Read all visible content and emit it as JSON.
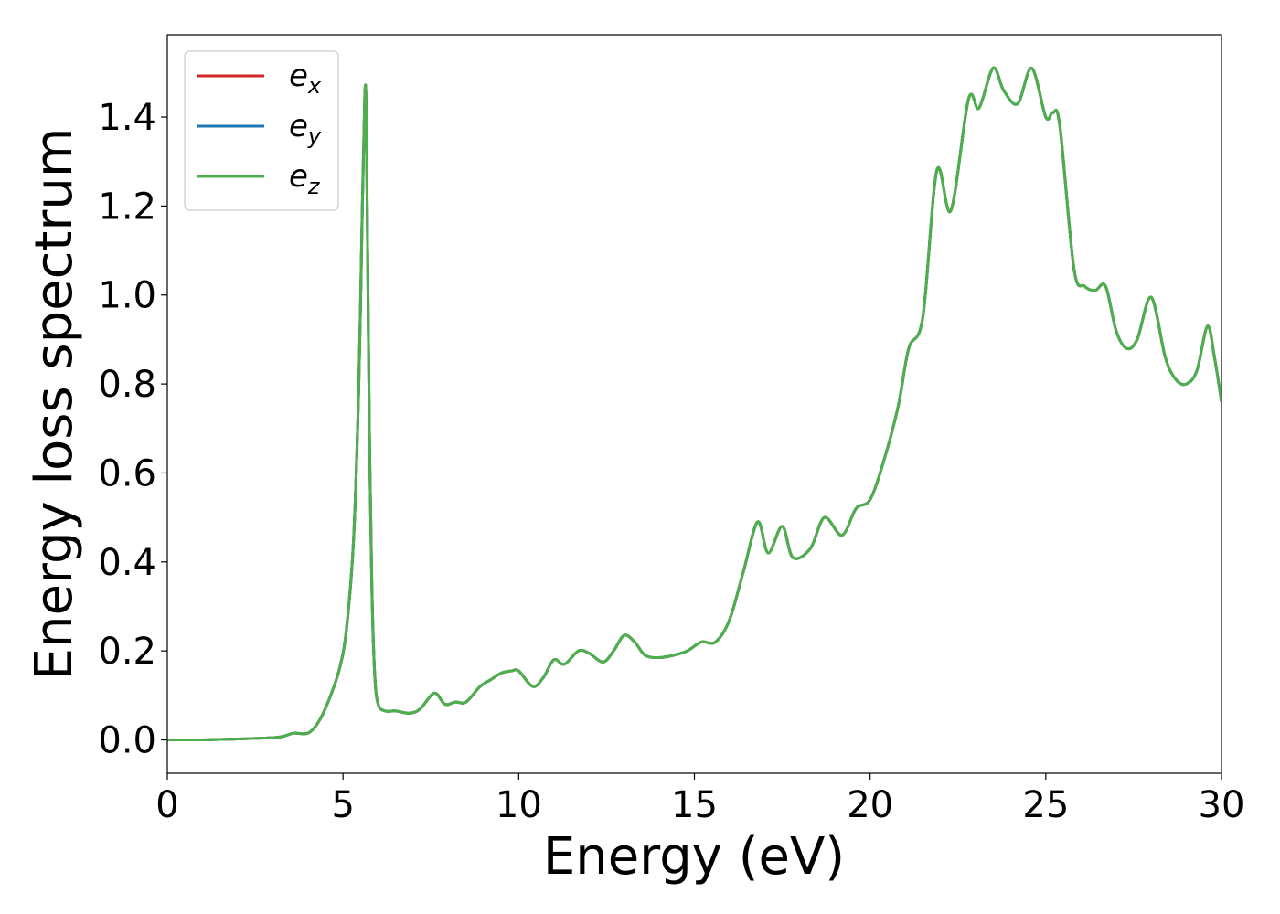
{
  "chart_data": {
    "type": "line",
    "title": "",
    "xlabel": "Energy (eV)",
    "ylabel": "Energy loss spectrum",
    "xlim": [
      0,
      30
    ],
    "ylim": [
      -0.075,
      1.585
    ],
    "xticks": [
      0,
      5,
      10,
      15,
      20,
      25,
      30
    ],
    "xtick_labels": [
      "0",
      "5",
      "10",
      "15",
      "20",
      "25",
      "30"
    ],
    "yticks": [
      0.0,
      0.2,
      0.4,
      0.6,
      0.8,
      1.0,
      1.2,
      1.4
    ],
    "ytick_labels": [
      "0.0",
      "0.2",
      "0.4",
      "0.6",
      "0.8",
      "1.0",
      "1.2",
      "1.4"
    ],
    "grid": false,
    "legend_position": "top-left",
    "series": [
      {
        "name": "e",
        "subscript": "x",
        "color": "#d62728"
      },
      {
        "name": "e",
        "subscript": "y",
        "color": "#1f77b4"
      },
      {
        "name": "e",
        "subscript": "z",
        "color": "#4daf4a"
      }
    ],
    "x": [
      0,
      1,
      2,
      3,
      3.3,
      3.6,
      4,
      4.3,
      4.6,
      4.9,
      5.1,
      5.3,
      5.45,
      5.55,
      5.62,
      5.66,
      5.7,
      5.75,
      5.82,
      5.9,
      6.0,
      6.2,
      6.5,
      6.9,
      7.2,
      7.6,
      7.9,
      8.2,
      8.5,
      8.9,
      9.2,
      9.5,
      9.8,
      10.0,
      10.4,
      10.7,
      11.0,
      11.3,
      11.7,
      12.0,
      12.4,
      12.7,
      13.0,
      13.3,
      13.6,
      14.0,
      14.4,
      14.8,
      15.2,
      15.6,
      16.0,
      16.4,
      16.8,
      17.1,
      17.5,
      17.8,
      18.3,
      18.7,
      19.2,
      19.6,
      20.0,
      20.4,
      20.8,
      21.1,
      21.5,
      21.9,
      22.3,
      22.8,
      23.1,
      23.5,
      23.8,
      24.2,
      24.6,
      25.0,
      25.2,
      25.4,
      25.8,
      26.1,
      26.4,
      26.7,
      27.0,
      27.3,
      27.6,
      28.0,
      28.4,
      28.7,
      29.0,
      29.3,
      29.6,
      29.8,
      30.0
    ],
    "values": [
      0.0,
      0.0,
      0.002,
      0.005,
      0.008,
      0.015,
      0.015,
      0.04,
      0.09,
      0.16,
      0.25,
      0.45,
      0.8,
      1.2,
      1.45,
      1.42,
      1.1,
      0.7,
      0.35,
      0.15,
      0.08,
      0.065,
      0.065,
      0.06,
      0.07,
      0.105,
      0.08,
      0.085,
      0.085,
      0.12,
      0.135,
      0.15,
      0.155,
      0.155,
      0.12,
      0.14,
      0.18,
      0.17,
      0.2,
      0.195,
      0.175,
      0.2,
      0.235,
      0.22,
      0.19,
      0.185,
      0.19,
      0.2,
      0.22,
      0.22,
      0.27,
      0.38,
      0.49,
      0.42,
      0.48,
      0.41,
      0.43,
      0.5,
      0.46,
      0.52,
      0.54,
      0.63,
      0.75,
      0.88,
      0.95,
      1.28,
      1.19,
      1.44,
      1.42,
      1.51,
      1.46,
      1.43,
      1.51,
      1.4,
      1.41,
      1.38,
      1.06,
      1.02,
      1.01,
      1.02,
      0.92,
      0.88,
      0.9,
      0.995,
      0.86,
      0.81,
      0.8,
      0.83,
      0.93,
      0.86,
      0.76
    ]
  }
}
